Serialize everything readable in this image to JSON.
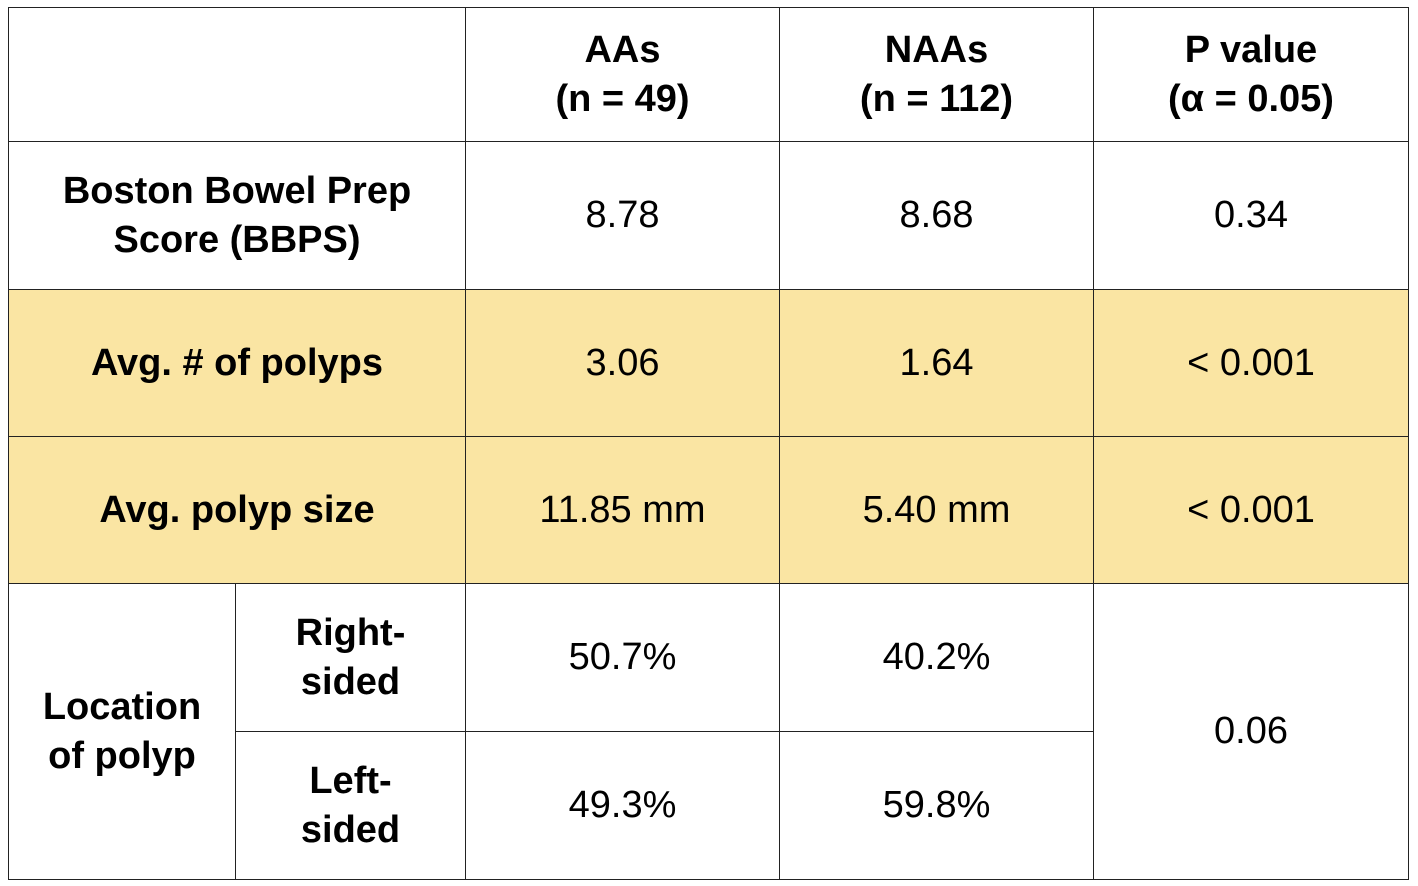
{
  "chart_data": {
    "type": "table",
    "header": {
      "group_1_line1": "AAs",
      "group_1_line2": "(n = 49)",
      "group_2_line1": "NAAs",
      "group_2_line2": "(n = 112)",
      "p_line1": "P value",
      "p_line2": "(α = 0.05)"
    },
    "rows": {
      "bbps": {
        "label_line1": "Boston Bowel Prep",
        "label_line2": "Score (BBPS)",
        "aas": "8.78",
        "naas": "8.68",
        "p": "0.34"
      },
      "polyp_count": {
        "label": "Avg. # of polyps",
        "aas": "3.06",
        "naas": "1.64",
        "p": "< 0.001"
      },
      "polyp_size": {
        "label": "Avg. polyp size",
        "aas": "11.85 mm",
        "naas": "5.40 mm",
        "p": "< 0.001"
      },
      "location": {
        "label_line1": "Location",
        "label_line2": "of polyp",
        "right_line1": "Right-",
        "right_line2": "sided",
        "right_aas": "50.7%",
        "right_naas": "40.2%",
        "left_line1": "Left-",
        "left_line2": "sided",
        "left_aas": "49.3%",
        "left_naas": "59.8%",
        "p": "0.06"
      }
    },
    "highlight_color": "#fae5a3"
  }
}
